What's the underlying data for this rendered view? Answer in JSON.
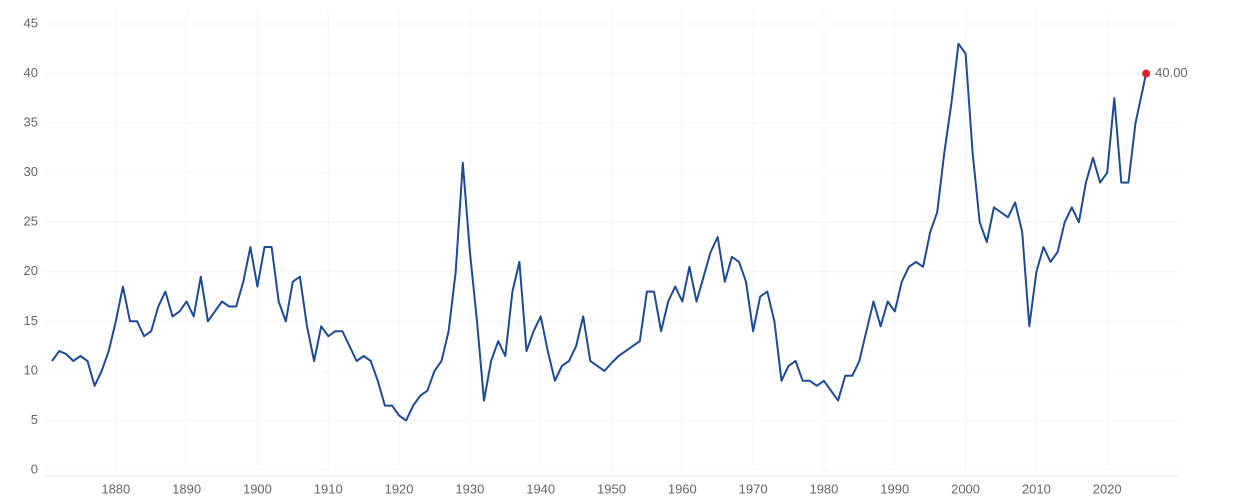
{
  "chart_data": {
    "type": "line",
    "x": [
      1871,
      1872,
      1873,
      1874,
      1875,
      1876,
      1877,
      1878,
      1879,
      1880,
      1881,
      1882,
      1883,
      1884,
      1885,
      1886,
      1887,
      1888,
      1889,
      1890,
      1891,
      1892,
      1893,
      1894,
      1895,
      1896,
      1897,
      1898,
      1899,
      1900,
      1901,
      1902,
      1903,
      1904,
      1905,
      1906,
      1907,
      1908,
      1909,
      1910,
      1911,
      1912,
      1913,
      1914,
      1915,
      1916,
      1917,
      1918,
      1919,
      1920,
      1921,
      1922,
      1923,
      1924,
      1925,
      1926,
      1927,
      1928,
      1929,
      1930,
      1931,
      1932,
      1933,
      1934,
      1935,
      1936,
      1937,
      1938,
      1939,
      1940,
      1941,
      1942,
      1943,
      1944,
      1945,
      1946,
      1947,
      1948,
      1949,
      1950,
      1951,
      1952,
      1953,
      1954,
      1955,
      1956,
      1957,
      1958,
      1959,
      1960,
      1961,
      1962,
      1963,
      1964,
      1965,
      1966,
      1967,
      1968,
      1969,
      1970,
      1971,
      1972,
      1973,
      1974,
      1975,
      1976,
      1977,
      1978,
      1979,
      1980,
      1981,
      1982,
      1983,
      1984,
      1985,
      1986,
      1987,
      1988,
      1989,
      1990,
      1991,
      1992,
      1993,
      1994,
      1995,
      1996,
      1997,
      1998,
      1999,
      2000,
      2001,
      2002,
      2003,
      2004,
      2005,
      2006,
      2007,
      2008,
      2009,
      2010,
      2011,
      2012,
      2013,
      2014,
      2015,
      2016,
      2017,
      2018,
      2019,
      2020,
      2021,
      2022,
      2023,
      2024,
      2025.5
    ],
    "values": [
      11,
      12,
      11.7,
      11,
      11.5,
      11,
      8.5,
      10,
      12,
      15,
      18.5,
      15,
      15,
      13.5,
      14,
      16.5,
      18,
      15.5,
      16,
      17,
      15.5,
      19.5,
      15,
      16,
      17,
      16.5,
      16.5,
      19,
      22.5,
      18.5,
      22.5,
      22.5,
      17,
      15,
      19,
      19.5,
      14.5,
      11,
      14.5,
      13.5,
      14,
      14,
      12.5,
      11,
      11.5,
      11,
      9,
      6.5,
      6.5,
      5.5,
      5,
      6.5,
      7.5,
      8,
      10,
      11,
      14,
      20,
      31,
      22,
      15,
      7,
      11,
      13,
      11.5,
      18,
      21,
      12,
      14,
      15.5,
      12,
      9,
      10.5,
      11,
      12.5,
      15.5,
      11,
      10.5,
      10,
      10.8,
      11.5,
      12,
      12.5,
      13,
      18,
      18,
      14,
      17,
      18.5,
      17,
      20.5,
      17,
      19.5,
      22,
      23.5,
      19,
      21.5,
      21,
      19,
      14,
      17.5,
      18,
      15,
      9,
      10.5,
      11,
      9,
      9,
      8.5,
      9,
      8,
      7,
      9.5,
      9.5,
      11,
      14,
      17,
      14.5,
      17,
      16,
      19,
      20.5,
      21,
      20.5,
      24,
      26,
      32,
      37,
      43,
      42,
      32,
      25,
      23,
      26.5,
      26,
      25.5,
      27,
      24,
      14.5,
      20,
      22.5,
      21,
      22,
      25,
      26.5,
      25,
      29,
      31.5,
      29,
      30,
      37.5,
      29,
      29,
      35,
      40
    ],
    "color": "#1f4a94",
    "end_label": "40.00",
    "end_color": "#d6202a",
    "xlim": [
      1870,
      2030
    ],
    "xticks": [
      1880,
      1890,
      1900,
      1910,
      1920,
      1930,
      1940,
      1950,
      1960,
      1970,
      1980,
      1990,
      2000,
      2010,
      2020
    ],
    "ylim": [
      0,
      45
    ],
    "yticks": [
      0,
      5,
      10,
      15,
      20,
      25,
      30,
      35,
      40,
      45
    ],
    "grid": true
  }
}
